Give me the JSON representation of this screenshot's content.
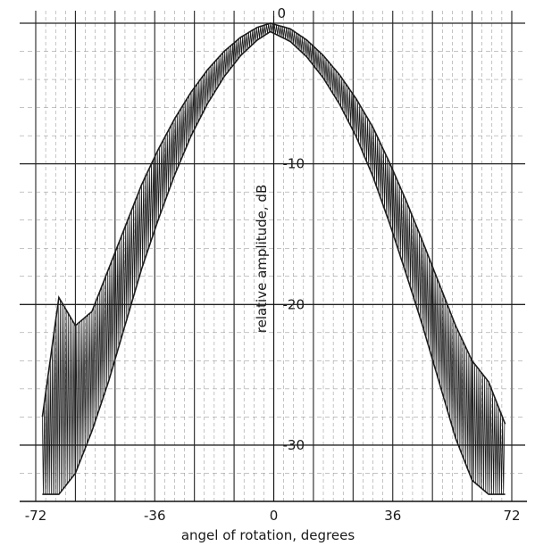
{
  "chart_data": {
    "type": "line",
    "title": "",
    "xlabel": "angel of rotation, degrees",
    "ylabel": "relative amplitude, dB",
    "xlim": [
      -72,
      72
    ],
    "ylim": [
      -34,
      0
    ],
    "x_ticks": [
      {
        "value": -72,
        "label": "-72"
      },
      {
        "value": -36,
        "label": "-36"
      },
      {
        "value": 0,
        "label": "0"
      },
      {
        "value": 36,
        "label": "36"
      },
      {
        "value": 72,
        "label": "72"
      }
    ],
    "y_ticks": [
      {
        "value": 0,
        "label": "0"
      },
      {
        "value": -10,
        "label": "-10"
      },
      {
        "value": -20,
        "label": "-20"
      },
      {
        "value": -30,
        "label": "-30"
      }
    ],
    "grid": true,
    "colors": {
      "trace": "#1c1c1c",
      "grid": "#8a8a8a",
      "major_grid": "#222222"
    },
    "series": [
      {
        "name": "",
        "envelope_upper": [
          [
            -70,
            -28.0
          ],
          [
            -65,
            -19.5
          ],
          [
            -60,
            -21.5
          ],
          [
            -55,
            -20.5
          ],
          [
            -50,
            -17.5
          ],
          [
            -45,
            -14.5
          ],
          [
            -40,
            -11.5
          ],
          [
            -35,
            -9.0
          ],
          [
            -30,
            -6.8
          ],
          [
            -25,
            -4.9
          ],
          [
            -20,
            -3.3
          ],
          [
            -15,
            -2.0
          ],
          [
            -10,
            -1.0
          ],
          [
            -5,
            -0.3
          ],
          [
            -1,
            0.0
          ],
          [
            5,
            -0.4
          ],
          [
            10,
            -1.2
          ],
          [
            15,
            -2.3
          ],
          [
            20,
            -3.7
          ],
          [
            25,
            -5.4
          ],
          [
            30,
            -7.4
          ],
          [
            35,
            -9.9
          ],
          [
            40,
            -12.6
          ],
          [
            45,
            -15.5
          ],
          [
            50,
            -18.5
          ],
          [
            55,
            -21.5
          ],
          [
            60,
            -24.0
          ],
          [
            65,
            -25.5
          ],
          [
            70,
            -28.5
          ]
        ],
        "envelope_lower": [
          [
            -70,
            -33.5
          ],
          [
            -65,
            -33.5
          ],
          [
            -60,
            -32.0
          ],
          [
            -55,
            -29.0
          ],
          [
            -50,
            -25.5
          ],
          [
            -45,
            -21.5
          ],
          [
            -40,
            -17.5
          ],
          [
            -35,
            -14.0
          ],
          [
            -30,
            -10.8
          ],
          [
            -25,
            -8.0
          ],
          [
            -20,
            -5.7
          ],
          [
            -15,
            -3.8
          ],
          [
            -10,
            -2.3
          ],
          [
            -5,
            -1.2
          ],
          [
            -1,
            -0.6
          ],
          [
            5,
            -1.3
          ],
          [
            10,
            -2.4
          ],
          [
            15,
            -3.9
          ],
          [
            20,
            -5.8
          ],
          [
            25,
            -8.1
          ],
          [
            30,
            -10.9
          ],
          [
            35,
            -14.2
          ],
          [
            40,
            -17.8
          ],
          [
            45,
            -21.5
          ],
          [
            50,
            -25.5
          ],
          [
            55,
            -29.5
          ],
          [
            60,
            -32.5
          ],
          [
            65,
            -33.5
          ],
          [
            70,
            -33.5
          ]
        ]
      }
    ]
  }
}
